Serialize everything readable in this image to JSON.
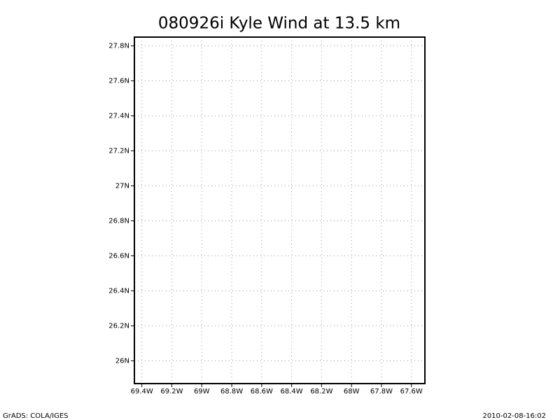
{
  "chart_data": {
    "type": "map",
    "title": "080926i Kyle Wind at 13.5 km",
    "xlim": [
      -69.45,
      -67.51
    ],
    "ylim": [
      25.87,
      27.85
    ],
    "xticks": [
      {
        "value": -69.4,
        "label": "69.4W"
      },
      {
        "value": -69.2,
        "label": "69.2W"
      },
      {
        "value": -69.0,
        "label": "69W"
      },
      {
        "value": -68.8,
        "label": "68.8W"
      },
      {
        "value": -68.6,
        "label": "68.6W"
      },
      {
        "value": -68.4,
        "label": "68.4W"
      },
      {
        "value": -68.2,
        "label": "68.2W"
      },
      {
        "value": -68.0,
        "label": "68W"
      },
      {
        "value": -67.8,
        "label": "67.8W"
      },
      {
        "value": -67.6,
        "label": "67.6W"
      }
    ],
    "yticks": [
      {
        "value": 26.0,
        "label": "26N"
      },
      {
        "value": 26.2,
        "label": "26.2N"
      },
      {
        "value": 26.4,
        "label": "26.4N"
      },
      {
        "value": 26.6,
        "label": "26.6N"
      },
      {
        "value": 26.8,
        "label": "26.8N"
      },
      {
        "value": 27.0,
        "label": "27N"
      },
      {
        "value": 27.2,
        "label": "27.2N"
      },
      {
        "value": 27.4,
        "label": "27.4N"
      },
      {
        "value": 27.6,
        "label": "27.6N"
      },
      {
        "value": 27.8,
        "label": "27.8N"
      }
    ],
    "grid": true,
    "footer_left": "GrADS: COLA/IGES",
    "footer_right": "2010-02-08-16:02"
  }
}
